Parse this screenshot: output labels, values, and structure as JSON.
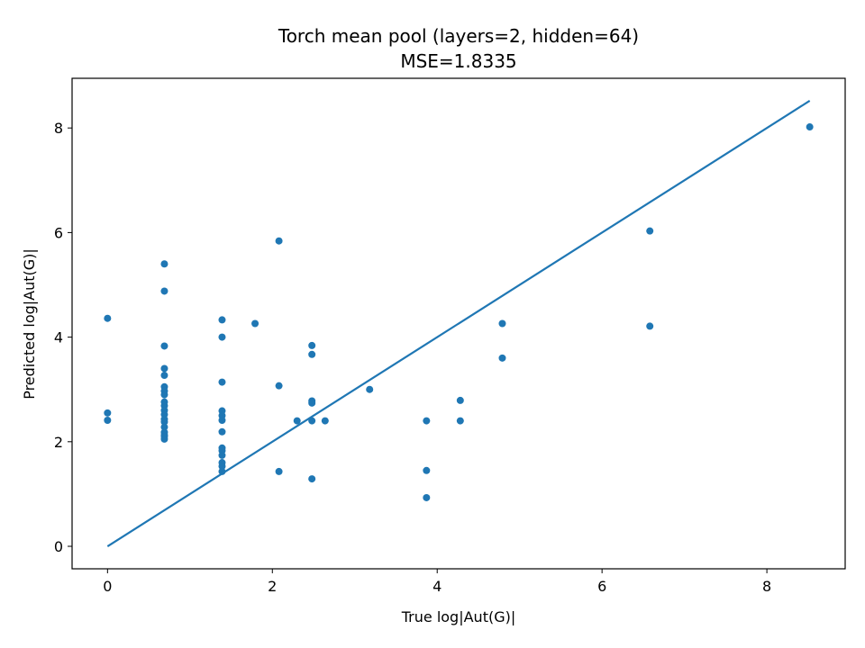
{
  "chart_data": {
    "type": "scatter",
    "title": "Torch mean pool (layers=2, hidden=64)",
    "subtitle": "MSE=1.8335",
    "xlabel": "True log|Aut(G)|",
    "ylabel": "Predicted log|Aut(G)|",
    "xlim": [
      -0.43,
      8.95
    ],
    "ylim": [
      -0.43,
      8.95
    ],
    "xticks": [
      0,
      2,
      4,
      6,
      8
    ],
    "yticks": [
      0,
      2,
      4,
      6,
      8
    ],
    "grid": false,
    "colors": {
      "points": "#1f77b4",
      "line": "#1f77b4"
    },
    "reference_line": {
      "x": [
        0,
        8.52
      ],
      "y": [
        0,
        8.52
      ]
    },
    "points": [
      {
        "x": 0,
        "y": 4.36
      },
      {
        "x": 0,
        "y": 2.55
      },
      {
        "x": 0,
        "y": 2.41
      },
      {
        "x": 0.69,
        "y": 5.4
      },
      {
        "x": 0.69,
        "y": 4.88
      },
      {
        "x": 0.69,
        "y": 3.83
      },
      {
        "x": 0.69,
        "y": 3.4
      },
      {
        "x": 0.69,
        "y": 3.27
      },
      {
        "x": 0.69,
        "y": 3.05
      },
      {
        "x": 0.69,
        "y": 2.97
      },
      {
        "x": 0.69,
        "y": 2.9
      },
      {
        "x": 0.69,
        "y": 2.76
      },
      {
        "x": 0.69,
        "y": 2.69
      },
      {
        "x": 0.69,
        "y": 2.6
      },
      {
        "x": 0.69,
        "y": 2.52
      },
      {
        "x": 0.69,
        "y": 2.43
      },
      {
        "x": 0.69,
        "y": 2.38
      },
      {
        "x": 0.69,
        "y": 2.28
      },
      {
        "x": 0.69,
        "y": 2.18
      },
      {
        "x": 0.69,
        "y": 2.13
      },
      {
        "x": 0.69,
        "y": 2.1
      },
      {
        "x": 0.69,
        "y": 2.05
      },
      {
        "x": 1.39,
        "y": 4.33
      },
      {
        "x": 1.39,
        "y": 4.0
      },
      {
        "x": 1.39,
        "y": 3.14
      },
      {
        "x": 1.39,
        "y": 2.59
      },
      {
        "x": 1.39,
        "y": 2.5
      },
      {
        "x": 1.39,
        "y": 2.41
      },
      {
        "x": 1.39,
        "y": 2.19
      },
      {
        "x": 1.39,
        "y": 1.88
      },
      {
        "x": 1.39,
        "y": 1.83
      },
      {
        "x": 1.39,
        "y": 1.74
      },
      {
        "x": 1.39,
        "y": 1.6
      },
      {
        "x": 1.39,
        "y": 1.53
      },
      {
        "x": 1.39,
        "y": 1.43
      },
      {
        "x": 1.79,
        "y": 4.26
      },
      {
        "x": 2.08,
        "y": 5.84
      },
      {
        "x": 2.08,
        "y": 3.07
      },
      {
        "x": 2.08,
        "y": 1.43
      },
      {
        "x": 2.3,
        "y": 2.4
      },
      {
        "x": 2.48,
        "y": 3.84
      },
      {
        "x": 2.48,
        "y": 3.67
      },
      {
        "x": 2.48,
        "y": 2.78
      },
      {
        "x": 2.48,
        "y": 2.74
      },
      {
        "x": 2.48,
        "y": 2.4
      },
      {
        "x": 2.48,
        "y": 1.29
      },
      {
        "x": 2.64,
        "y": 2.4
      },
      {
        "x": 3.18,
        "y": 3.0
      },
      {
        "x": 3.87,
        "y": 2.4
      },
      {
        "x": 3.87,
        "y": 1.45
      },
      {
        "x": 3.87,
        "y": 0.93
      },
      {
        "x": 4.28,
        "y": 2.79
      },
      {
        "x": 4.28,
        "y": 2.4
      },
      {
        "x": 4.79,
        "y": 4.26
      },
      {
        "x": 4.79,
        "y": 3.6
      },
      {
        "x": 6.58,
        "y": 6.03
      },
      {
        "x": 6.58,
        "y": 4.21
      },
      {
        "x": 8.52,
        "y": 8.02
      }
    ]
  }
}
